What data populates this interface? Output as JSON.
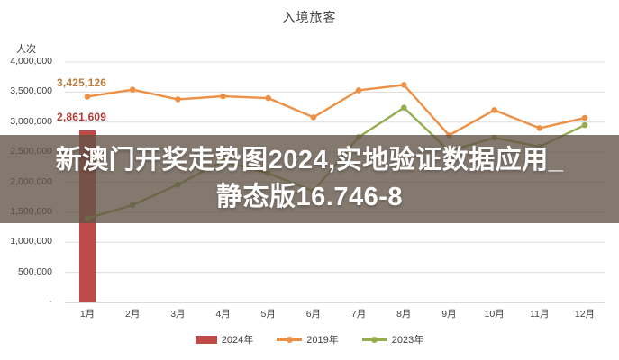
{
  "title": "入境旅客",
  "y_axis_unit": "人次",
  "overlay": {
    "line1": "新澳门开奖走势图2024,实地验证数据应用_",
    "line2": "静态版16.746-8",
    "bg": "rgba(97,83,71,0.78)",
    "text_color": "#ffffff"
  },
  "chart_data": {
    "type": "combo",
    "title": "入境旅客",
    "ylabel": "人次",
    "ylim": [
      0,
      4000000
    ],
    "grid": true,
    "legend_position": "bottom",
    "categories": [
      "1月",
      "2月",
      "3月",
      "4月",
      "5月",
      "6月",
      "7月",
      "8月",
      "9月",
      "10月",
      "11月",
      "12月"
    ],
    "y_ticks": [
      {
        "label": "4,000,000",
        "value": 4000000
      },
      {
        "label": "3,500,000",
        "value": 3500000
      },
      {
        "label": "3,000,000",
        "value": 3000000
      },
      {
        "label": "2,500,000",
        "value": 2500000
      },
      {
        "label": "2,000,000",
        "value": 2000000
      },
      {
        "label": "1,500,000",
        "value": 1500000
      },
      {
        "label": "1,000,000",
        "value": 1000000
      },
      {
        "label": "500,000",
        "value": 500000
      },
      {
        "label": "-",
        "value": 0
      }
    ],
    "series": [
      {
        "name": "2024年",
        "type": "bar",
        "color": "#be4b48",
        "values": [
          2861609,
          null,
          null,
          null,
          null,
          null,
          null,
          null,
          null,
          null,
          null,
          null
        ]
      },
      {
        "name": "2019年",
        "type": "line",
        "color": "#ed9045",
        "values": [
          3425126,
          3540000,
          3380000,
          3430000,
          3400000,
          3080000,
          3530000,
          3620000,
          2780000,
          3200000,
          2900000,
          3070000
        ]
      },
      {
        "name": "2023年",
        "type": "line",
        "color": "#94ad4f",
        "values": [
          1400000,
          1620000,
          1960000,
          2350000,
          2150000,
          1850000,
          2750000,
          3240000,
          2520000,
          2740000,
          2590000,
          2950000
        ]
      }
    ],
    "point_labels": [
      {
        "series_index": 1,
        "index": 0,
        "text": "3,425,126",
        "color": "#bc7b3b"
      },
      {
        "series_index": 0,
        "index": 0,
        "text": "2,861,609",
        "color": "#b03a36"
      }
    ],
    "grid_color": "#dcdcdc",
    "axis_color": "#b7b7b7"
  }
}
